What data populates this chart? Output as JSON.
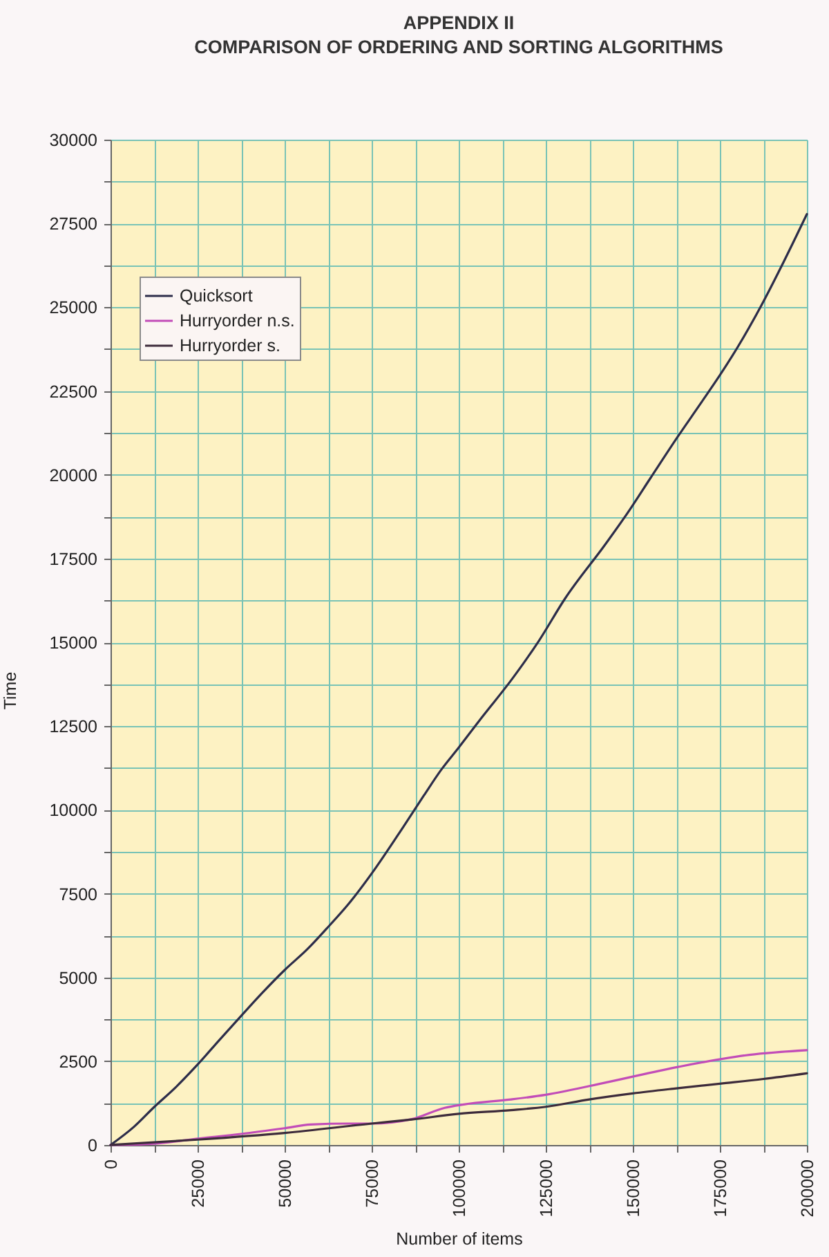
{
  "chart_data": {
    "type": "line",
    "title": "APPENDIX II",
    "subtitle": "COMPARISON OF ORDERING AND SORTING ALGORITHMS",
    "xlabel": "Number of items",
    "ylabel": "Time",
    "series": [
      {
        "name": "Quicksort",
        "color": "#2d2d4a",
        "x": [
          0,
          6800,
          12500,
          18500,
          25000,
          31500,
          37500,
          43500,
          50000,
          56500,
          62000,
          68500,
          75000,
          84000,
          90000,
          95000,
          100000,
          106500,
          115500,
          123000,
          130500,
          142000,
          148500,
          155000,
          163000,
          169500,
          175000,
          180000,
          187000,
          193500,
          200000
        ],
        "values": [
          0,
          550,
          1130,
          1700,
          2400,
          3160,
          3850,
          4530,
          5220,
          5840,
          6450,
          7210,
          8100,
          9480,
          10430,
          11200,
          11860,
          12740,
          13930,
          15040,
          16300,
          17910,
          18860,
          19890,
          21150,
          22130,
          22970,
          23790,
          25070,
          26390,
          27780
        ]
      },
      {
        "name": "Hurryorder n.s.",
        "color": "#c24cb8",
        "x": [
          0,
          12500,
          25000,
          37500,
          50000,
          57500,
          68500,
          75000,
          86500,
          96000,
          101500,
          115000,
          125000,
          142500,
          163000,
          183500,
          200000
        ],
        "values": [
          0,
          40,
          190,
          330,
          500,
          610,
          640,
          640,
          770,
          1110,
          1210,
          1360,
          1500,
          1870,
          2330,
          2690,
          2830
        ]
      },
      {
        "name": "Hurryorder s.",
        "color": "#3d2b3b",
        "x": [
          0,
          25000,
          50000,
          75000,
          86500,
          100000,
          115000,
          125000,
          137500,
          150000,
          162500,
          175000,
          187500,
          200000
        ],
        "values": [
          0,
          160,
          360,
          640,
          760,
          930,
          1040,
          1140,
          1360,
          1540,
          1690,
          1830,
          1970,
          2140
        ]
      }
    ],
    "xlim": [
      0,
      200000
    ],
    "xticks": [
      0,
      {
        "value": 12500,
        "label": null
      },
      25000,
      {
        "value": 37500,
        "label": null
      },
      50000,
      {
        "value": 62500,
        "label": null
      },
      75000,
      {
        "value": 87500,
        "label": null
      },
      100000,
      {
        "value": 112500,
        "label": null
      },
      125000,
      {
        "value": 137500,
        "label": null
      },
      150000,
      {
        "value": 162500,
        "label": null
      },
      175000,
      {
        "value": 187500,
        "label": null
      },
      200000
    ],
    "ylim": [
      0,
      30000
    ],
    "yticks": [
      0,
      {
        "value": 1250,
        "label": null
      },
      2500,
      {
        "value": 3750,
        "label": null
      },
      5000,
      {
        "value": 6250,
        "label": null
      },
      7500,
      {
        "value": 8750,
        "label": null
      },
      10000,
      {
        "value": 11250,
        "label": null
      },
      12500,
      {
        "value": 13750,
        "label": null
      },
      15000,
      {
        "value": 16250,
        "label": null
      },
      17500,
      {
        "value": 18750,
        "label": null
      },
      20000,
      {
        "value": 21250,
        "label": null
      },
      22500,
      {
        "value": 23750,
        "label": null
      },
      25000,
      {
        "value": 26250,
        "label": null
      },
      27500,
      {
        "value": 28750,
        "label": null
      },
      30000
    ],
    "grid": true,
    "legend": "top left"
  }
}
